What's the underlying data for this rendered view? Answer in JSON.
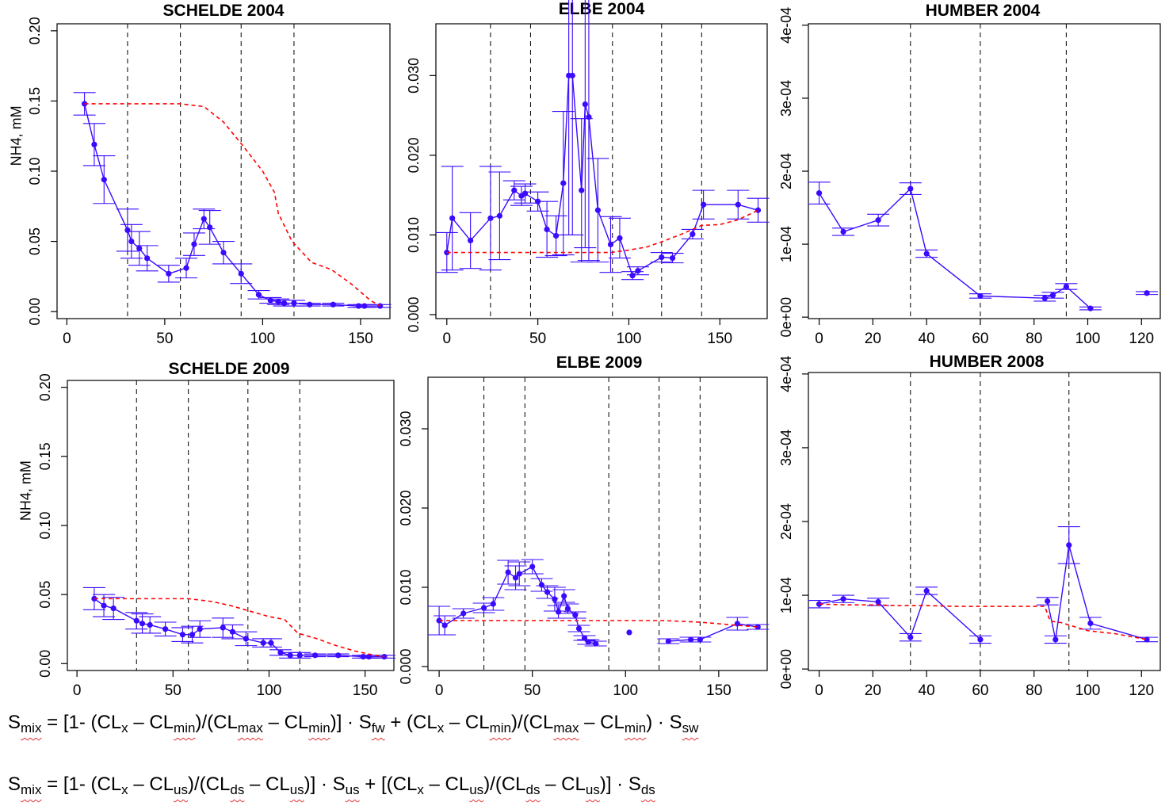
{
  "chart_data": [
    {
      "type": "line",
      "title": "SCHELDE 2004",
      "ylabel": "NH4, mM",
      "xlim": [
        -5,
        165
      ],
      "ylim": [
        -0.005,
        0.205
      ],
      "xticks": [
        0,
        50,
        100,
        150
      ],
      "yticks": [
        "0.00",
        "0.05",
        "0.10",
        "0.15",
        "0.20"
      ],
      "yticks_values": [
        0,
        0.05,
        0.1,
        0.15,
        0.2
      ],
      "vlines": [
        31,
        58,
        89,
        116
      ],
      "series": [
        {
          "kind": "observed",
          "color": "#3b0aff",
          "x": [
            9,
            14,
            19,
            31,
            33,
            37,
            41,
            52,
            61,
            65,
            70,
            73,
            80,
            89,
            98,
            104,
            108,
            111,
            116,
            124,
            136,
            149,
            152,
            160
          ],
          "y": [
            0.148,
            0.119,
            0.094,
            0.058,
            0.05,
            0.045,
            0.038,
            0.027,
            0.031,
            0.048,
            0.066,
            0.06,
            0.042,
            0.027,
            0.012,
            0.008,
            0.007,
            0.006,
            0.006,
            0.005,
            0.005,
            0.004,
            0.004,
            0.004
          ],
          "err": [
            0.008,
            0.015,
            0.017,
            0.015,
            0.012,
            0.012,
            0.009,
            0.006,
            0.007,
            0.008,
            0.007,
            0.012,
            0.008,
            0.007,
            0.003,
            0.002,
            0.002,
            0.002,
            0.002,
            0.001,
            0.001,
            0.001,
            0.001,
            0.001
          ]
        },
        {
          "kind": "mixing",
          "color": "#ff0000",
          "x": [
            9,
            30,
            58,
            70,
            80,
            90,
            100,
            106,
            108,
            115,
            125,
            135,
            145,
            155,
            160
          ],
          "y": [
            0.148,
            0.148,
            0.148,
            0.146,
            0.135,
            0.118,
            0.1,
            0.085,
            0.07,
            0.05,
            0.035,
            0.03,
            0.02,
            0.008,
            0.004
          ]
        }
      ]
    },
    {
      "type": "line",
      "title": "ELBE 2004",
      "ylabel": "",
      "xlim": [
        -6,
        176
      ],
      "ylim": [
        -0.0005,
        0.0365
      ],
      "xticks": [
        0,
        50,
        100,
        150
      ],
      "yticks": [
        "0.000",
        "0.010",
        "0.020",
        "0.030"
      ],
      "yticks_values": [
        0,
        0.01,
        0.02,
        0.03
      ],
      "vlines": [
        24,
        46,
        91,
        118,
        140
      ],
      "series": [
        {
          "kind": "observed",
          "color": "#3b0aff",
          "x": [
            0,
            3,
            13,
            24,
            29,
            37,
            41,
            43,
            50,
            55,
            60,
            64,
            67,
            69,
            74,
            76,
            78,
            83,
            90,
            95,
            102,
            105,
            118,
            124,
            135,
            141,
            160,
            171
          ],
          "y": [
            0.0078,
            0.0121,
            0.0093,
            0.0121,
            0.0124,
            0.0156,
            0.0149,
            0.0152,
            0.0142,
            0.0107,
            0.0099,
            0.0165,
            0.03,
            0.03,
            0.0156,
            0.0264,
            0.0248,
            0.0131,
            0.0088,
            0.0096,
            0.0049,
            0.0055,
            0.0072,
            0.0071,
            0.0101,
            0.0138,
            0.0138,
            0.0131
          ],
          "err": [
            0.0025,
            0.0065,
            0.0035,
            0.0065,
            0.0055,
            0.0012,
            0.0012,
            0.0012,
            0.0012,
            0.0035,
            0.0025,
            0.009,
            0.02,
            0.02,
            0.009,
            0.018,
            0.018,
            0.0065,
            0.0035,
            0.0025,
            0.0005,
            0.0005,
            0.0006,
            0.0006,
            0.0006,
            0.0018,
            0.0018,
            0.0015
          ]
        },
        {
          "kind": "mixing",
          "color": "#ff0000",
          "x": [
            0,
            20,
            50,
            70,
            90,
            100,
            110,
            120,
            130,
            140,
            150,
            160,
            171
          ],
          "y": [
            0.0078,
            0.0078,
            0.0078,
            0.0078,
            0.0078,
            0.0081,
            0.0085,
            0.0093,
            0.0102,
            0.0112,
            0.0113,
            0.0119,
            0.0131
          ]
        }
      ]
    },
    {
      "type": "line",
      "title": "HUMBER 2004",
      "ylabel": "",
      "xlim": [
        -4,
        127
      ],
      "ylim": [
        -2e-06,
        0.000402
      ],
      "xticks": [
        0,
        20,
        40,
        60,
        80,
        100,
        120
      ],
      "yticks": [
        "0e+00",
        "1e-04",
        "2e-04",
        "3e-04",
        "4e-04"
      ],
      "yticks_values": [
        0,
        0.0001,
        0.0002,
        0.0003,
        0.0004
      ],
      "vlines": [
        34,
        60,
        92
      ],
      "series": [
        {
          "kind": "observed",
          "color": "#3b0aff",
          "x": [
            0,
            9,
            22,
            34,
            40,
            60,
            84,
            87,
            92,
            101
          ],
          "y": [
            0.00017,
            0.000117,
            0.000133,
            0.000176,
            8.7e-05,
            2.9e-05,
            2.6e-05,
            3e-05,
            4.2e-05,
            1.2e-05
          ],
          "err": [
            1.5e-05,
            5e-06,
            8e-06,
            8e-06,
            5e-06,
            3e-06,
            4e-06,
            4e-06,
            4e-06,
            2e-06
          ]
        },
        {
          "kind": "observed-isolated",
          "color": "#3b0aff",
          "x": [
            122
          ],
          "y": [
            3.3e-05
          ],
          "err": [
            2e-06
          ]
        }
      ]
    },
    {
      "type": "line",
      "title": "SCHELDE 2009",
      "ylabel": "NH4, mM",
      "xlim": [
        -5,
        165
      ],
      "ylim": [
        -0.005,
        0.205
      ],
      "xticks": [
        0,
        50,
        100,
        150
      ],
      "yticks": [
        "0.00",
        "0.05",
        "0.10",
        "0.15",
        "0.20"
      ],
      "yticks_values": [
        0,
        0.05,
        0.1,
        0.15,
        0.2
      ],
      "vlines": [
        31,
        58,
        89,
        116
      ],
      "series": [
        {
          "kind": "observed",
          "color": "#3b0aff",
          "x": [
            9,
            14,
            19,
            31,
            34,
            38,
            46,
            55,
            60,
            64,
            76,
            81,
            88,
            97,
            101,
            106,
            111,
            116,
            124,
            136,
            149,
            152,
            160
          ],
          "y": [
            0.047,
            0.042,
            0.04,
            0.031,
            0.029,
            0.028,
            0.025,
            0.021,
            0.021,
            0.025,
            0.026,
            0.023,
            0.018,
            0.015,
            0.015,
            0.008,
            0.006,
            0.006,
            0.006,
            0.006,
            0.005,
            0.005,
            0.005
          ],
          "err": [
            0.008,
            0.008,
            0.008,
            0.006,
            0.007,
            0.006,
            0.005,
            0.005,
            0.006,
            0.006,
            0.007,
            0.005,
            0.005,
            0.003,
            0.003,
            0.002,
            0.002,
            0.002,
            0.001,
            0.001,
            0.001,
            0.001,
            0.001
          ]
        },
        {
          "kind": "mixing",
          "color": "#ff0000",
          "x": [
            9,
            30,
            58,
            70,
            80,
            90,
            100,
            108,
            115,
            125,
            135,
            145,
            155,
            160
          ],
          "y": [
            0.047,
            0.047,
            0.047,
            0.045,
            0.042,
            0.038,
            0.034,
            0.032,
            0.022,
            0.018,
            0.013,
            0.009,
            0.006,
            0.005
          ]
        }
      ]
    },
    {
      "type": "line",
      "title": "ELBE 2009",
      "ylabel": "",
      "xlim": [
        -6,
        176
      ],
      "ylim": [
        -0.0005,
        0.0365
      ],
      "xticks": [
        0,
        50,
        100,
        150
      ],
      "yticks": [
        "0.000",
        "0.010",
        "0.020",
        "0.030"
      ],
      "yticks_values": [
        0,
        0.01,
        0.02,
        0.03
      ],
      "vlines": [
        24,
        46,
        91,
        118,
        140
      ],
      "series": [
        {
          "kind": "observed",
          "color": "#3b0aff",
          "x": [
            0,
            3,
            13,
            24,
            29,
            37,
            41,
            43,
            50,
            55,
            58,
            62,
            64,
            67,
            69,
            73,
            75,
            78,
            80,
            84
          ],
          "y": [
            0.0058,
            0.0052,
            0.0067,
            0.0074,
            0.0079,
            0.0119,
            0.0112,
            0.0117,
            0.0126,
            0.0103,
            0.0094,
            0.0085,
            0.0069,
            0.0089,
            0.0073,
            0.0065,
            0.0048,
            0.0036,
            0.0031,
            0.0029
          ],
          "err": [
            0.0018,
            0.0012,
            0.0006,
            0.0006,
            0.0008,
            0.0015,
            0.0015,
            0.0015,
            0.0009,
            0.0008,
            0.0008,
            0.0015,
            0.0008,
            0.0008,
            0.0006,
            0.0004,
            0.0004,
            0.0003,
            0.0003,
            0.0003
          ]
        },
        {
          "kind": "observed-isolated",
          "color": "#3b0aff",
          "x": [
            102
          ],
          "y": [
            0.0043
          ],
          "err": [
            0
          ]
        },
        {
          "kind": "observed",
          "color": "#3b0aff",
          "x": [
            123,
            135,
            140,
            160,
            171
          ],
          "y": [
            0.0032,
            0.0034,
            0.0034,
            0.0054,
            0.005
          ],
          "err": [
            0.0003,
            0.0003,
            0.0003,
            0.0008,
            0.0003
          ]
        },
        {
          "kind": "mixing",
          "color": "#ff0000",
          "x": [
            0,
            30,
            60,
            90,
            120,
            140,
            160,
            171
          ],
          "y": [
            0.0058,
            0.0058,
            0.0058,
            0.0058,
            0.0058,
            0.0056,
            0.0052,
            0.005
          ]
        }
      ]
    },
    {
      "type": "line",
      "title": "HUMBER 2008",
      "ylabel": "",
      "xlim": [
        -4,
        127
      ],
      "ylim": [
        -2e-06,
        0.000402
      ],
      "xticks": [
        0,
        20,
        40,
        60,
        80,
        100,
        120
      ],
      "yticks": [
        "0e+00",
        "1e-04",
        "2e-04",
        "3e-04",
        "4e-04"
      ],
      "yticks_values": [
        0,
        0.0001,
        0.0002,
        0.0003,
        0.0004
      ],
      "vlines": [
        34,
        60,
        93
      ],
      "series": [
        {
          "kind": "observed",
          "color": "#3b0aff",
          "x": [
            0,
            9,
            22,
            34,
            40,
            60
          ],
          "y": [
            8.8e-05,
            9.5e-05,
            9.1e-05,
            4.3e-05,
            0.000106,
            4e-05
          ],
          "err": [
            5e-06,
            5e-06,
            5e-06,
            5e-06,
            5e-06,
            5e-06
          ]
        },
        {
          "kind": "observed",
          "color": "#3b0aff",
          "x": [
            85,
            88,
            93,
            101,
            122
          ],
          "y": [
            9.2e-05,
            4e-05,
            0.000168,
            6.2e-05,
            4e-05
          ],
          "err": [
            5e-06,
            5e-06,
            2.5e-05,
            8e-06,
            3e-06
          ]
        },
        {
          "kind": "mixing",
          "color": "#ff0000",
          "x": [
            0,
            10,
            20,
            30,
            40,
            50,
            60,
            70,
            84,
            86,
            90,
            100,
            110,
            122
          ],
          "y": [
            8.8e-05,
            8.7e-05,
            8.7e-05,
            8.6e-05,
            8.6e-05,
            8.5e-05,
            8.5e-05,
            8.5e-05,
            8.5e-05,
            6.5e-05,
            6.3e-05,
            5.2e-05,
            4.8e-05,
            4e-05
          ]
        }
      ]
    }
  ],
  "formulas": {
    "f1": {
      "s": "S",
      "s_sub": "mix",
      "eq": " = [1- (CL",
      "x1": "x",
      "minus1": " – CL",
      "min1": "min",
      "mid1": ")/(CL",
      "max1": "max",
      "minus2": " – CL",
      "min2": "min",
      "close1": ")] · S",
      "fw": "fw",
      "plus": "  + (CL",
      "x2": "x",
      "minus3": " – CL",
      "min3": "min",
      "mid2": ")/(CL",
      "max2": "max",
      "minus4": " – CL",
      "min4": "min",
      "close2": ") · S",
      "sw": "sw"
    },
    "f2": {
      "s": "S",
      "s_sub": "mix",
      "eq": " = [1- (CL",
      "x1": "x",
      "minus1": " – CL",
      "us1": "us",
      "mid1": ")/(CL",
      "ds1": "ds",
      "minus2": " – CL",
      "us2": "us",
      "close1": ")] · S",
      "us3": "us",
      "plus": " + [(CL",
      "x2": "x",
      "minus3": " – CL",
      "us4": "us",
      "mid2": ")/(CL",
      "ds2": "ds",
      "minus4": " – CL",
      "us5": "us",
      "close2": ")] · S",
      "ds3": "ds"
    }
  }
}
